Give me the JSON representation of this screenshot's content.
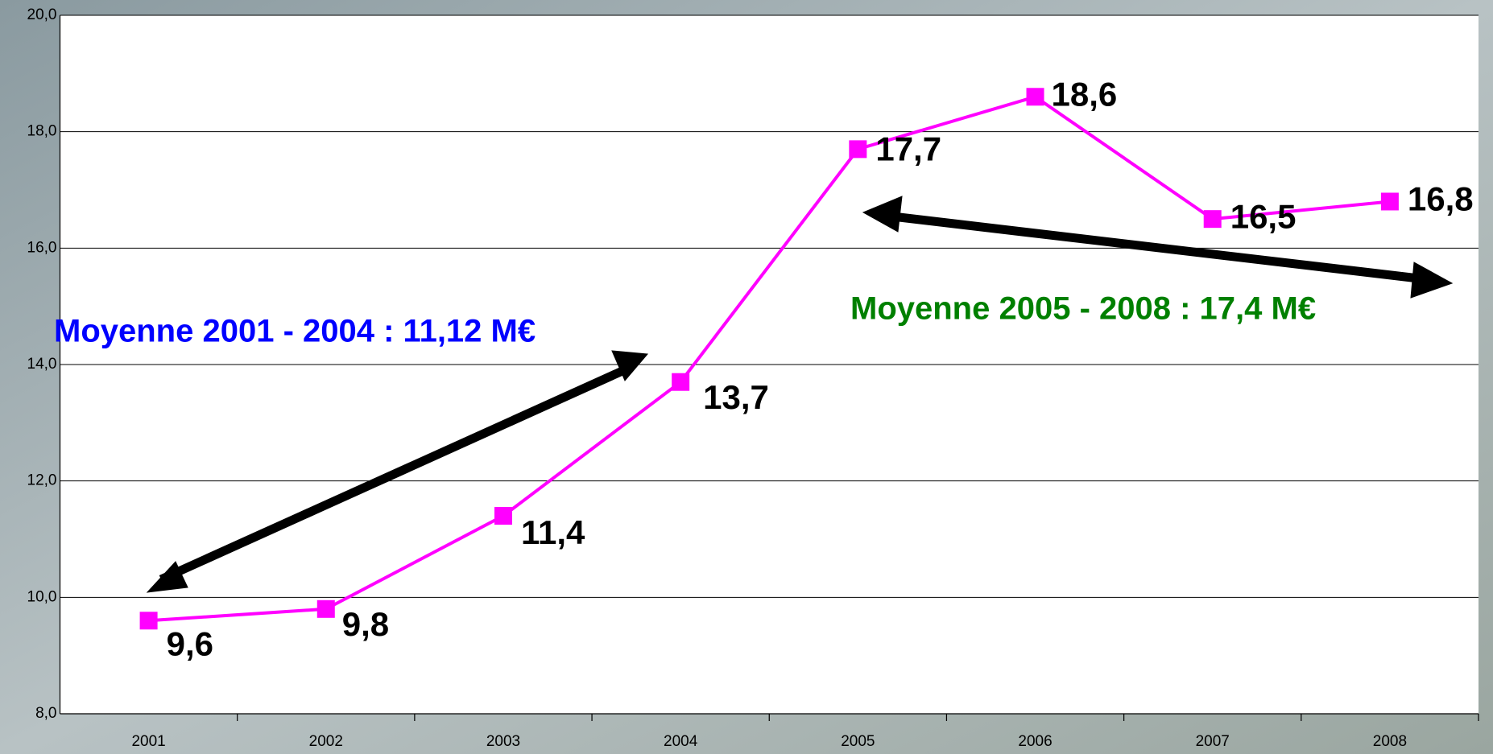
{
  "chart_data": {
    "type": "line",
    "categories": [
      "2001",
      "2002",
      "2003",
      "2004",
      "2005",
      "2006",
      "2007",
      "2008"
    ],
    "series": [
      {
        "color": "#ff00ff",
        "values": [
          9.6,
          9.8,
          11.4,
          13.7,
          17.7,
          18.6,
          16.5,
          16.8
        ],
        "value_labels": [
          "9,6",
          "9,8",
          "11,4",
          "13,7",
          "17,7",
          "18,6",
          "16,5",
          "16,8"
        ]
      }
    ],
    "ylim": [
      8,
      20
    ],
    "yticks": [
      {
        "value": 8,
        "label": "8,0"
      },
      {
        "value": 10,
        "label": "10,0"
      },
      {
        "value": 12,
        "label": "12,0"
      },
      {
        "value": 14,
        "label": "14,0"
      },
      {
        "value": 16,
        "label": "16,0"
      },
      {
        "value": 18,
        "label": "18,0"
      },
      {
        "value": 20,
        "label": "20,0"
      }
    ],
    "grid": true,
    "annotations": [
      {
        "text": "Moyenne 2001 - 2004 : 11,12 M€",
        "color": "#0000ff"
      },
      {
        "text": "Moyenne 2005 - 2008 : 17,4 M€",
        "color": "#008000"
      }
    ]
  }
}
